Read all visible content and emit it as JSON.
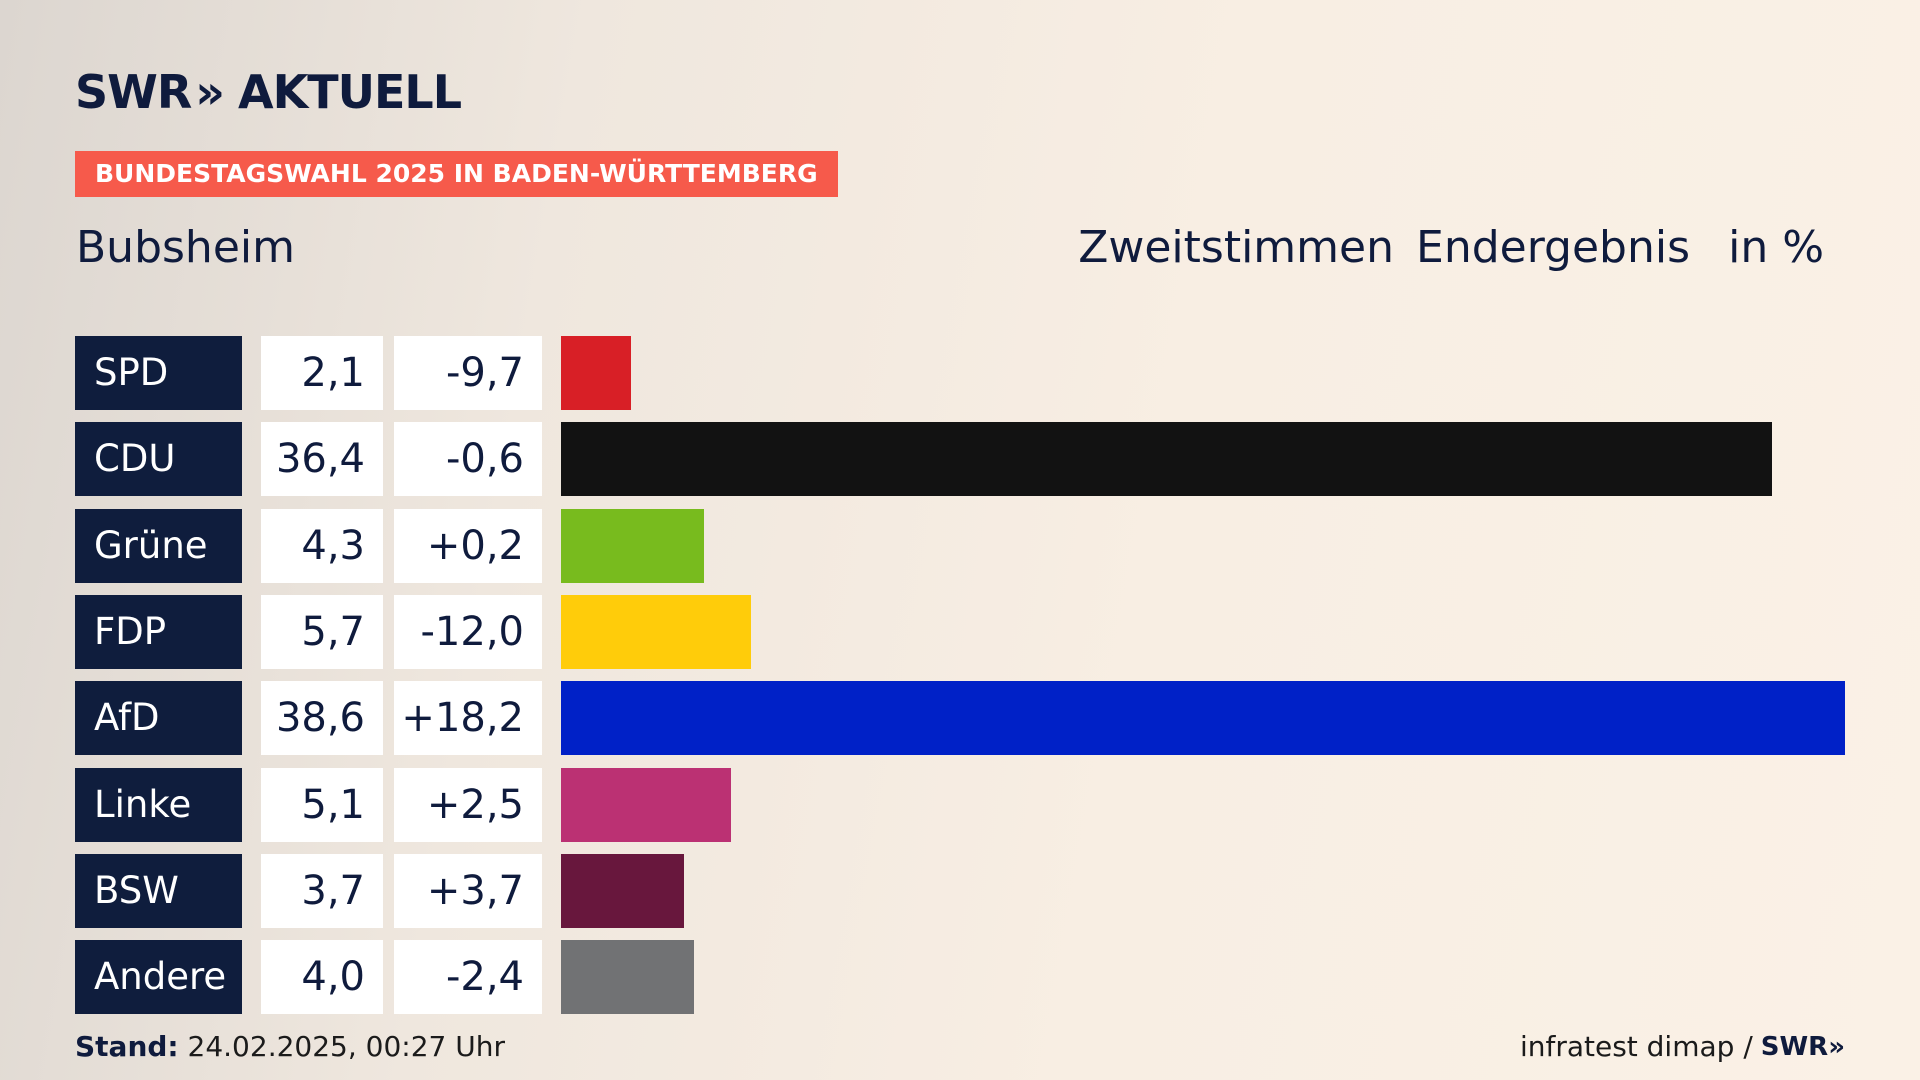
{
  "logo": {
    "brand": "SWR",
    "chevron": "»",
    "title": "AKTUELL"
  },
  "banner": "BUNDESTAGSWAHL 2025 IN BADEN-WÜRTTEMBERG",
  "place": "Bubsheim",
  "header": {
    "vote_type": "Zweitstimmen",
    "status": "Endergebnis",
    "unit": "in %"
  },
  "chart_data": {
    "type": "bar",
    "orientation": "horizontal",
    "title": "Bubsheim",
    "categories": [
      "SPD",
      "CDU",
      "Grüne",
      "FDP",
      "AfD",
      "Linke",
      "BSW",
      "Andere"
    ],
    "values": [
      2.1,
      36.4,
      4.3,
      5.7,
      38.6,
      5.1,
      3.7,
      4.0
    ],
    "value_labels": [
      "2,1",
      "36,4",
      "4,3",
      "5,7",
      "38,6",
      "5,1",
      "3,7",
      "4,0"
    ],
    "changes": [
      -9.7,
      -0.6,
      0.2,
      -12.0,
      18.2,
      2.5,
      3.7,
      -2.4
    ],
    "change_labels": [
      "-9,7",
      "-0,6",
      "+0,2",
      "-12,0",
      "+18,2",
      "+2,5",
      "+3,7",
      "-2,4"
    ],
    "colors": [
      "#d81f26",
      "#121212",
      "#78bb1e",
      "#ffcc0a",
      "#0021c7",
      "#bb3173",
      "#68173d",
      "#717274"
    ],
    "xlim": [
      0,
      38.6
    ],
    "grid": false,
    "legend": "none"
  },
  "footer": {
    "stand_label": "Stand:",
    "stand_value": "24.02.2025, 00:27 Uhr",
    "source": "infratest dimap /",
    "source_brand": "SWR»"
  }
}
